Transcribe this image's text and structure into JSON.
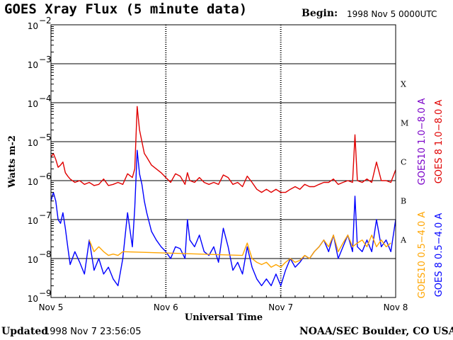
{
  "header": {
    "title": "GOES Xray Flux (5 minute data)",
    "begin_label": "Begin:",
    "begin_value": "1998 Nov 5 0000UTC"
  },
  "footer": {
    "updated_label": "Updated",
    "updated_value": "1998 Nov  7 23:56:05",
    "credit": "NOAA/SEC Boulder, CO USA"
  },
  "chart_data": {
    "type": "line",
    "title": "GOES Xray Flux (5 minute data)",
    "xlabel": "Universal Time",
    "ylabel": "Watts m-2",
    "y_scale": "log",
    "ylim": [
      1e-09,
      0.01
    ],
    "y_ticks": [
      {
        "value": 0.01,
        "base": "10",
        "exp": "−2"
      },
      {
        "value": 0.001,
        "base": "10",
        "exp": "−3"
      },
      {
        "value": 0.0001,
        "base": "10",
        "exp": "−4"
      },
      {
        "value": 1e-05,
        "base": "10",
        "exp": "−5"
      },
      {
        "value": 1e-06,
        "base": "10",
        "exp": "−6"
      },
      {
        "value": 1e-07,
        "base": "10",
        "exp": "−7"
      },
      {
        "value": 1e-08,
        "base": "10",
        "exp": "−8"
      },
      {
        "value": 1e-09,
        "base": "10",
        "exp": "−9"
      }
    ],
    "x_ticks": [
      "Nov 5",
      "Nov 6",
      "Nov 7",
      "Nov 8"
    ],
    "xlim_hours": [
      0,
      72
    ],
    "grid": true,
    "flare_classes": [
      {
        "label": "X",
        "value": 0.0001
      },
      {
        "label": "M",
        "value": 1e-05
      },
      {
        "label": "C",
        "value": 1e-06
      },
      {
        "label": "B",
        "value": 1e-07
      },
      {
        "label": "A",
        "value": 1e-08
      }
    ],
    "legend": [
      {
        "text": "GOES10 1.0−8.0 A",
        "color": "#7a00c8"
      },
      {
        "text": "GOES 8 1.0−8.0 A",
        "color": "#e00000"
      },
      {
        "text": "GOES10 0.5−4.0 A",
        "color": "#ffa500"
      },
      {
        "text": "GOES 8 0.5−4.0 A",
        "color": "#0000ff"
      }
    ],
    "series": [
      {
        "name": "GOES 8 1.0−8.0 A",
        "color": "#e00000",
        "x_hours": [
          0,
          0.5,
          1,
          1.5,
          2,
          2.5,
          3,
          3.5,
          4,
          5,
          6,
          7,
          8,
          9,
          10,
          11,
          12,
          13,
          14,
          15,
          16,
          17,
          17.5,
          18,
          18.5,
          19,
          19.5,
          20,
          21,
          22,
          23,
          24,
          25,
          26,
          27,
          28,
          28.5,
          29,
          30,
          31,
          32,
          33,
          34,
          35,
          36,
          37,
          38,
          39,
          40,
          41,
          42,
          43,
          44,
          45,
          46,
          47,
          48,
          49,
          50,
          51,
          52,
          53,
          54,
          55,
          56,
          57,
          58,
          59,
          60,
          61,
          62,
          63,
          63.5,
          64,
          65,
          66,
          67,
          68,
          69,
          70,
          71,
          72
        ],
        "values": [
          4e-06,
          5e-06,
          3.5e-06,
          2.2e-06,
          2.5e-06,
          3e-06,
          1.6e-06,
          1.3e-06,
          1.1e-06,
          9e-07,
          1e-06,
          8e-07,
          9e-07,
          7.5e-07,
          8e-07,
          1.1e-06,
          7.5e-07,
          8e-07,
          9e-07,
          8e-07,
          1.5e-06,
          1.2e-06,
          2e-06,
          8e-05,
          2e-05,
          1e-05,
          5e-06,
          4e-06,
          2.5e-06,
          2e-06,
          1.6e-06,
          1.2e-06,
          9e-07,
          1.5e-06,
          1.3e-06,
          8e-07,
          1.6e-06,
          1e-06,
          9e-07,
          1.2e-06,
          9e-07,
          8e-07,
          9e-07,
          8e-07,
          1.4e-06,
          1.2e-06,
          8e-07,
          9e-07,
          7e-07,
          1.3e-06,
          9e-07,
          6e-07,
          5e-07,
          6e-07,
          5e-07,
          6e-07,
          5e-07,
          5e-07,
          6e-07,
          7e-07,
          6e-07,
          8e-07,
          7e-07,
          7e-07,
          8e-07,
          9e-07,
          9e-07,
          1.1e-06,
          8e-07,
          9e-07,
          1e-06,
          9e-07,
          1.5e-05,
          1e-06,
          9e-07,
          1.1e-06,
          9e-07,
          3e-06,
          1e-06,
          1e-06,
          9e-07,
          1.9e-06
        ]
      },
      {
        "name": "GOES 8 0.5−4.0 A",
        "color": "#0000ff",
        "x_hours": [
          0,
          0.5,
          1,
          1.5,
          2,
          2.5,
          3,
          3.5,
          4,
          5,
          6,
          7,
          8,
          9,
          10,
          11,
          12,
          13,
          14,
          15,
          16,
          17,
          17.5,
          18,
          18.5,
          19,
          19.5,
          20,
          21,
          22,
          23,
          24,
          25,
          26,
          27,
          28,
          28.5,
          29,
          30,
          31,
          32,
          33,
          34,
          35,
          36,
          37,
          38,
          39,
          40,
          41,
          42,
          43,
          44,
          45,
          46,
          47,
          48,
          49,
          50,
          51,
          52,
          53,
          54,
          55,
          56,
          57,
          58,
          59,
          60,
          61,
          62,
          63,
          63.5,
          64,
          65,
          66,
          67,
          68,
          69,
          70,
          71,
          72
        ],
        "values": [
          3e-07,
          5e-07,
          3e-07,
          1e-07,
          8e-08,
          1.5e-07,
          6e-08,
          2e-08,
          7e-09,
          1.5e-08,
          8e-09,
          4e-09,
          3e-08,
          5e-09,
          1e-08,
          4e-09,
          6e-09,
          3e-09,
          2e-09,
          1e-08,
          1.5e-07,
          2e-08,
          2e-07,
          6e-06,
          1.5e-06,
          8e-07,
          3e-07,
          1.5e-07,
          5e-08,
          3e-08,
          2e-08,
          1.5e-08,
          1e-08,
          2e-08,
          1.8e-08,
          1e-08,
          1e-07,
          3e-08,
          2e-08,
          4e-08,
          1.5e-08,
          1.2e-08,
          2e-08,
          8e-09,
          6e-08,
          2e-08,
          5e-09,
          8e-09,
          4e-09,
          2e-08,
          6e-09,
          3e-09,
          2e-09,
          3e-09,
          2e-09,
          4e-09,
          2e-09,
          5e-09,
          1e-08,
          6e-09,
          8e-09,
          1.2e-08,
          1e-08,
          1.5e-08,
          2e-08,
          3e-08,
          1.5e-08,
          4e-08,
          1e-08,
          2e-08,
          4e-08,
          1.5e-08,
          4e-07,
          2e-08,
          1.5e-08,
          3e-08,
          1.5e-08,
          1e-07,
          2e-08,
          3e-08,
          1.5e-08,
          1e-07
        ]
      },
      {
        "name": "GOES10 0.5−4.0 A",
        "color": "#ffa500",
        "x_hours": [
          8,
          9,
          10,
          11,
          12,
          13,
          14,
          15,
          40,
          41,
          42,
          43,
          44,
          45,
          46,
          47,
          48,
          49,
          50,
          51,
          52,
          53,
          54,
          55,
          56,
          57,
          58,
          59,
          60,
          61,
          62,
          63,
          64,
          65,
          66,
          67,
          68,
          69,
          70,
          71
        ],
        "values": [
          3e-08,
          1.5e-08,
          2e-08,
          1.5e-08,
          1.2e-08,
          1.3e-08,
          1.2e-08,
          1.5e-08,
          1.2e-08,
          2.5e-08,
          1e-08,
          8e-09,
          7e-09,
          8e-09,
          6e-09,
          7e-09,
          6e-09,
          8e-09,
          1e-08,
          8e-09,
          9e-09,
          1.2e-08,
          1e-08,
          1.5e-08,
          2e-08,
          3e-08,
          2e-08,
          4e-08,
          1.5e-08,
          2.5e-08,
          4e-08,
          2e-08,
          2.5e-08,
          3e-08,
          2e-08,
          4e-08,
          2e-08,
          3e-08,
          2e-08,
          2.5e-08
        ]
      }
    ]
  }
}
